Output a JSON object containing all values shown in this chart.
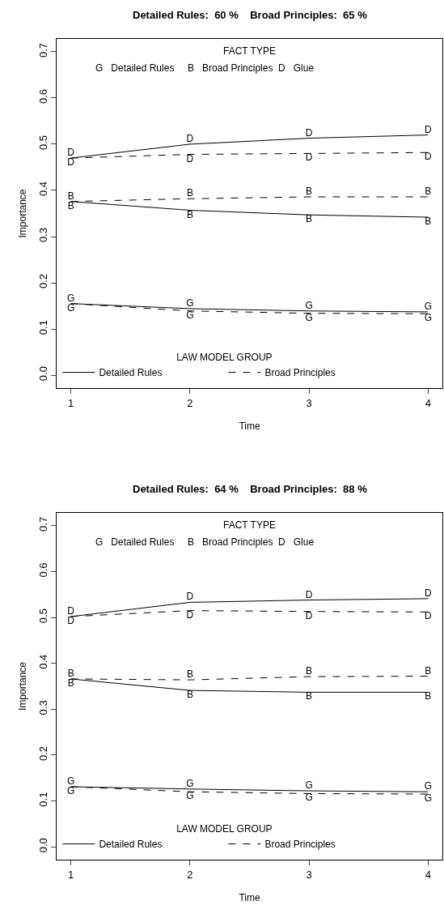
{
  "chart_data": [
    {
      "type": "line",
      "title": "Detailed Rules:  60 %    Broad Principles:  65 %",
      "xlabel": "Time",
      "ylabel": "Importance",
      "legend_title": "LAW MODEL GROUP",
      "legend": "bottom left",
      "annotations": [
        "FACT TYPE",
        "G   Detailed Rules     B   Broad Principles  D   Glue"
      ],
      "x": [
        1,
        2,
        3,
        4
      ],
      "xlim": [
        0.88,
        4.12
      ],
      "xticks": [
        1,
        2,
        3,
        4
      ],
      "ylim": [
        -0.028,
        0.728
      ],
      "yticks": [
        {
          "value": 0,
          "label": "0.0"
        },
        0.1,
        0.2,
        0.3,
        0.4,
        0.5,
        0.6,
        0.7
      ],
      "series": [
        {
          "name": "Detailed Rules",
          "color": "#000000",
          "line_style": "solid",
          "values": [
            0.47,
            0.5,
            0.513,
            0.52
          ],
          "value_labels": [
            "D",
            "D",
            "D",
            "D"
          ]
        },
        {
          "name": "Broad Principles",
          "color": "#000000",
          "line_style": "dashed",
          "values": [
            0.47,
            0.478,
            0.48,
            0.482
          ],
          "value_labels": [
            "D",
            "D",
            "D",
            "D"
          ]
        },
        {
          "color": "#000000",
          "line_style": "solid",
          "values": [
            0.376,
            0.357,
            0.347,
            0.342
          ],
          "value_labels": [
            "B",
            "B",
            "B",
            "B"
          ]
        },
        {
          "color": "#000000",
          "line_style": "dashed",
          "values": [
            0.376,
            0.382,
            0.386,
            0.386
          ],
          "value_labels": [
            "B",
            "B",
            "B",
            "B"
          ]
        },
        {
          "color": "#000000",
          "line_style": "solid",
          "values": [
            0.155,
            0.144,
            0.139,
            0.137
          ],
          "value_labels": [
            "G",
            "G",
            "G",
            "G"
          ]
        },
        {
          "color": "#000000",
          "line_style": "dashed",
          "values": [
            0.155,
            0.139,
            0.134,
            0.133
          ],
          "value_labels": [
            "G",
            "G",
            "G",
            "G"
          ]
        }
      ]
    },
    {
      "type": "line",
      "title": "Detailed Rules:  64 %    Broad Principles:  88 %",
      "xlabel": "Time",
      "ylabel": "Importance",
      "legend_title": "LAW MODEL GROUP",
      "legend": "bottom left",
      "annotations": [
        "FACT TYPE",
        "G   Detailed Rules     B   Broad Principles  D   Glue"
      ],
      "x": [
        1,
        2,
        3,
        4
      ],
      "xlim": [
        0.88,
        4.12
      ],
      "xticks": [
        1,
        2,
        3,
        4
      ],
      "ylim": [
        -0.028,
        0.728
      ],
      "yticks": [
        {
          "value": 0,
          "label": "0.0"
        },
        0.1,
        0.2,
        0.3,
        0.4,
        0.5,
        0.6,
        0.7
      ],
      "series": [
        {
          "name": "Detailed Rules",
          "color": "#000000",
          "line_style": "solid",
          "values": [
            0.502,
            0.533,
            0.538,
            0.541
          ],
          "value_labels": [
            "D",
            "D",
            "D",
            "D"
          ]
        },
        {
          "name": "Broad Principles",
          "color": "#000000",
          "line_style": "dashed",
          "values": [
            0.502,
            0.515,
            0.513,
            0.512
          ],
          "value_labels": [
            "D",
            "D",
            "D",
            "D"
          ]
        },
        {
          "color": "#000000",
          "line_style": "solid",
          "values": [
            0.366,
            0.341,
            0.337,
            0.337
          ],
          "value_labels": [
            "B",
            "B",
            "B",
            "B"
          ]
        },
        {
          "color": "#000000",
          "line_style": "dashed",
          "values": [
            0.366,
            0.364,
            0.371,
            0.372
          ],
          "value_labels": [
            "B",
            "B",
            "B",
            "B"
          ]
        },
        {
          "color": "#000000",
          "line_style": "solid",
          "values": [
            0.131,
            0.126,
            0.122,
            0.12
          ],
          "value_labels": [
            "G",
            "G",
            "G",
            "G"
          ]
        },
        {
          "color": "#000000",
          "line_style": "dashed",
          "values": [
            0.131,
            0.12,
            0.116,
            0.115
          ],
          "value_labels": [
            "G",
            "G",
            "G",
            "G"
          ]
        }
      ]
    }
  ]
}
